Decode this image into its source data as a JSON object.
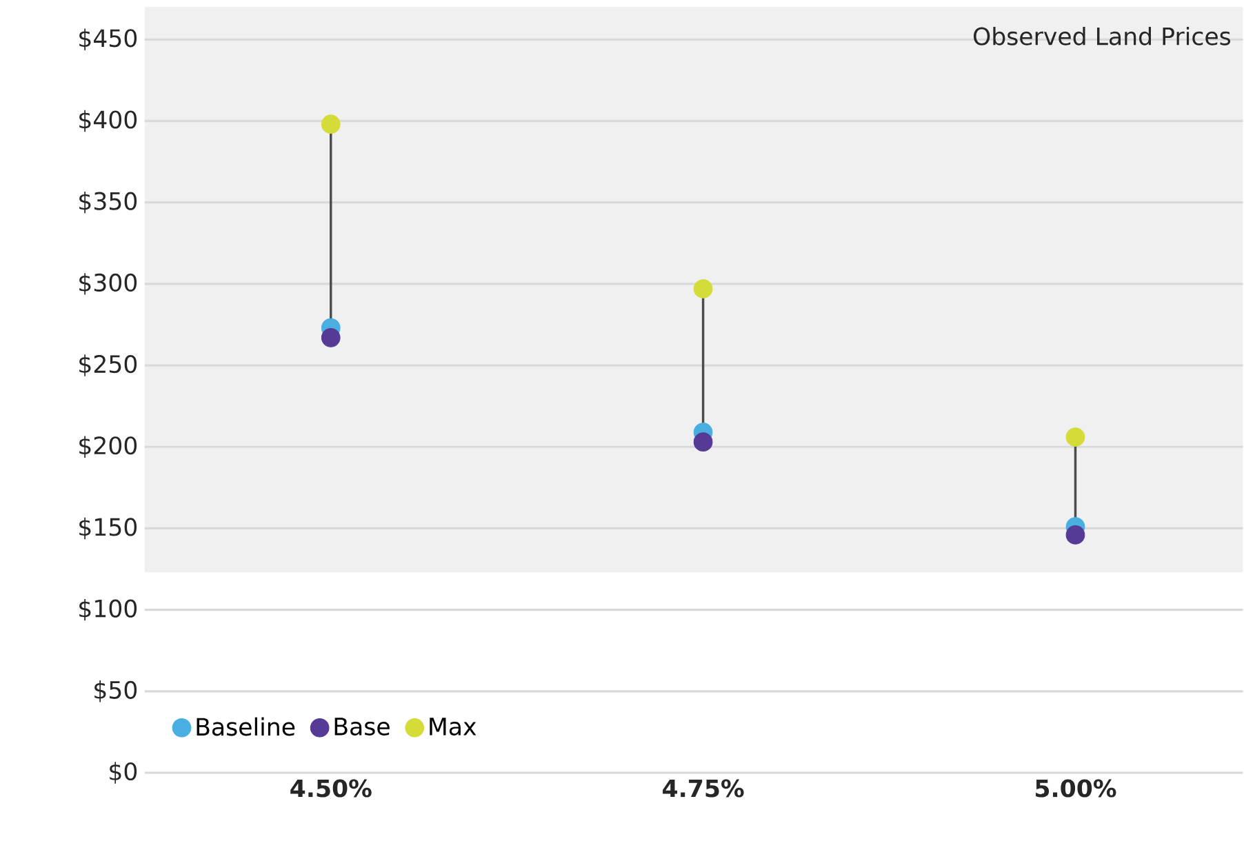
{
  "chart_data": {
    "type": "scatter",
    "categories": [
      "4.50%",
      "4.75%",
      "5.00%"
    ],
    "series": [
      {
        "name": "Baseline",
        "color": "#4aaee0",
        "values": [
          273,
          209,
          151
        ]
      },
      {
        "name": "Base",
        "color": "#553a96",
        "values": [
          267,
          203,
          146
        ]
      },
      {
        "name": "Max",
        "color": "#d4dc3a",
        "values": [
          398,
          297,
          206
        ]
      }
    ],
    "ylim": [
      0,
      470
    ],
    "yticks": [
      {
        "value": 0,
        "label": "$0"
      },
      {
        "value": 50,
        "label": "$50"
      },
      {
        "value": 100,
        "label": "$100"
      },
      {
        "value": 150,
        "label": "$150"
      },
      {
        "value": 200,
        "label": "$200"
      },
      {
        "value": 250,
        "label": "$250"
      },
      {
        "value": 300,
        "label": "$300"
      },
      {
        "value": 350,
        "label": "$350"
      },
      {
        "value": 400,
        "label": "$400"
      },
      {
        "value": 450,
        "label": "$450"
      }
    ],
    "bands": [
      {
        "axis": "y",
        "from": 123,
        "to": 470,
        "label": "Observed Land Prices",
        "color": "#f0f0f0"
      }
    ],
    "grid": "y",
    "legend": "bottom left",
    "marker": "circle"
  }
}
